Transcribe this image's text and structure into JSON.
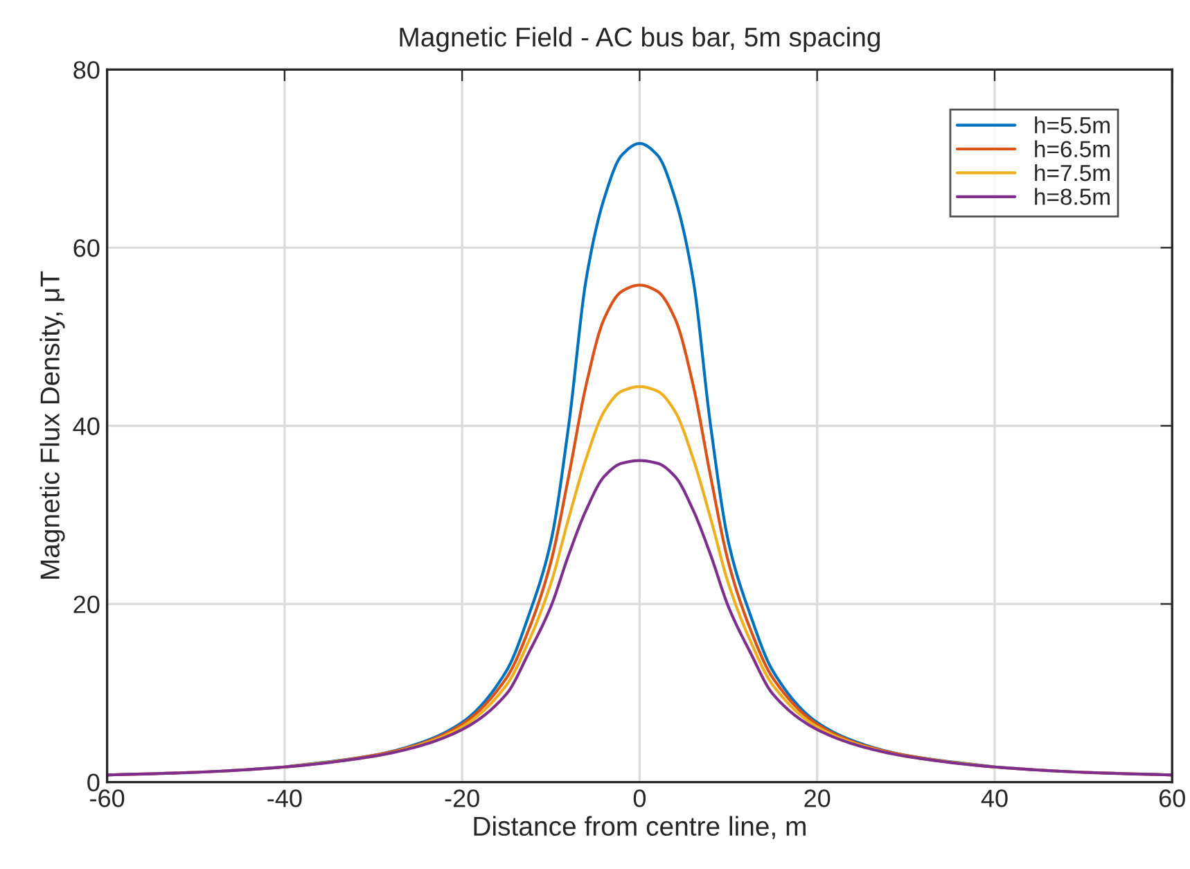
{
  "chart_data": {
    "type": "line",
    "title": "Magnetic Field - AC bus bar, 5m spacing",
    "xlabel": "Distance from centre line, m",
    "ylabel": "Magnetic Flux Density, μT",
    "x": [
      -60,
      -50,
      -40,
      -30,
      -25,
      -20,
      -15,
      -12.5,
      -10,
      -8,
      -6,
      -4,
      -2,
      0,
      2,
      4,
      6,
      8,
      10,
      12.5,
      15,
      20,
      25,
      30,
      40,
      50,
      60
    ],
    "series": [
      {
        "name": "h=5.5m",
        "color": "#0072bd",
        "values": [
          null,
          null,
          1.7,
          3.0,
          4.3,
          6.7,
          12.5,
          18.7,
          27,
          40,
          56.6,
          65.5,
          70.4,
          71.7,
          70.4,
          65.5,
          56.6,
          40,
          27,
          18.7,
          12.5,
          6.7,
          4.3,
          3.0,
          1.7,
          null,
          null
        ]
      },
      {
        "name": "h=6.5m",
        "color": "#d95319",
        "values": [
          0.8,
          1.1,
          1.7,
          3.0,
          4.2,
          6.5,
          11.7,
          17.1,
          24.7,
          34.3,
          44.7,
          52,
          55.1,
          55.8,
          55.1,
          52,
          44.7,
          34.3,
          24.7,
          17.1,
          11.7,
          6.5,
          4.2,
          3.0,
          1.7,
          1.1,
          0.8
        ]
      },
      {
        "name": "h=7.5m",
        "color": "#edb120",
        "values": [
          null,
          null,
          1.7,
          2.9,
          4.1,
          6.2,
          10.9,
          15.8,
          22.3,
          29.6,
          36.4,
          41.6,
          43.9,
          44.4,
          43.9,
          41.6,
          36.4,
          29.6,
          22.3,
          15.8,
          10.9,
          6.2,
          4.1,
          2.9,
          1.7,
          null,
          null
        ]
      },
      {
        "name": "h=8.5m",
        "color": "#7e2f8e",
        "values": [
          0.8,
          1.1,
          1.7,
          2.9,
          4.0,
          5.9,
          9.9,
          14.5,
          19.7,
          25.5,
          30.6,
          34.3,
          35.8,
          36.1,
          35.8,
          34.3,
          30.6,
          25.5,
          19.7,
          14.5,
          9.9,
          5.9,
          4.0,
          2.9,
          1.7,
          1.1,
          0.8
        ]
      }
    ],
    "xlim": [
      -60,
      60
    ],
    "xticks": [
      -60,
      -40,
      -20,
      0,
      20,
      40,
      60
    ],
    "ylim": [
      0,
      80
    ],
    "yticks": [
      0,
      20,
      40,
      60,
      80
    ],
    "grid": true,
    "legend": "top right",
    "line_style": "solid",
    "marker": "none"
  }
}
